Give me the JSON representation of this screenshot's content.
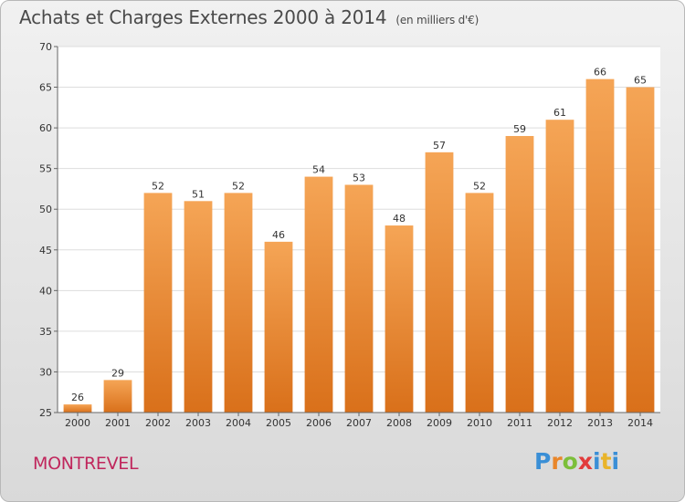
{
  "title": "Achats et Charges Externes 2000 à 2014",
  "subtitle": "(en milliers d'€)",
  "commune": "MONTREVEL",
  "logo": {
    "letters": [
      "P",
      "r",
      "o",
      "x",
      "i",
      "t",
      "i"
    ],
    "colors": [
      "#3a8fd6",
      "#e9862a",
      "#7cbf3a",
      "#e23b3b",
      "#3a8fd6",
      "#e9b42a",
      "#3a8fd6"
    ]
  },
  "chart_data": {
    "type": "bar",
    "categories": [
      "2000",
      "2001",
      "2002",
      "2003",
      "2004",
      "2005",
      "2006",
      "2007",
      "2008",
      "2009",
      "2010",
      "2011",
      "2012",
      "2013",
      "2014"
    ],
    "values": [
      26,
      29,
      52,
      51,
      52,
      46,
      54,
      53,
      48,
      57,
      52,
      59,
      61,
      66,
      65
    ],
    "ylim": [
      25,
      70
    ],
    "yticks": [
      25,
      30,
      35,
      40,
      45,
      50,
      55,
      60,
      65,
      70
    ],
    "grid": true,
    "bar_color": "#ee8f33"
  }
}
